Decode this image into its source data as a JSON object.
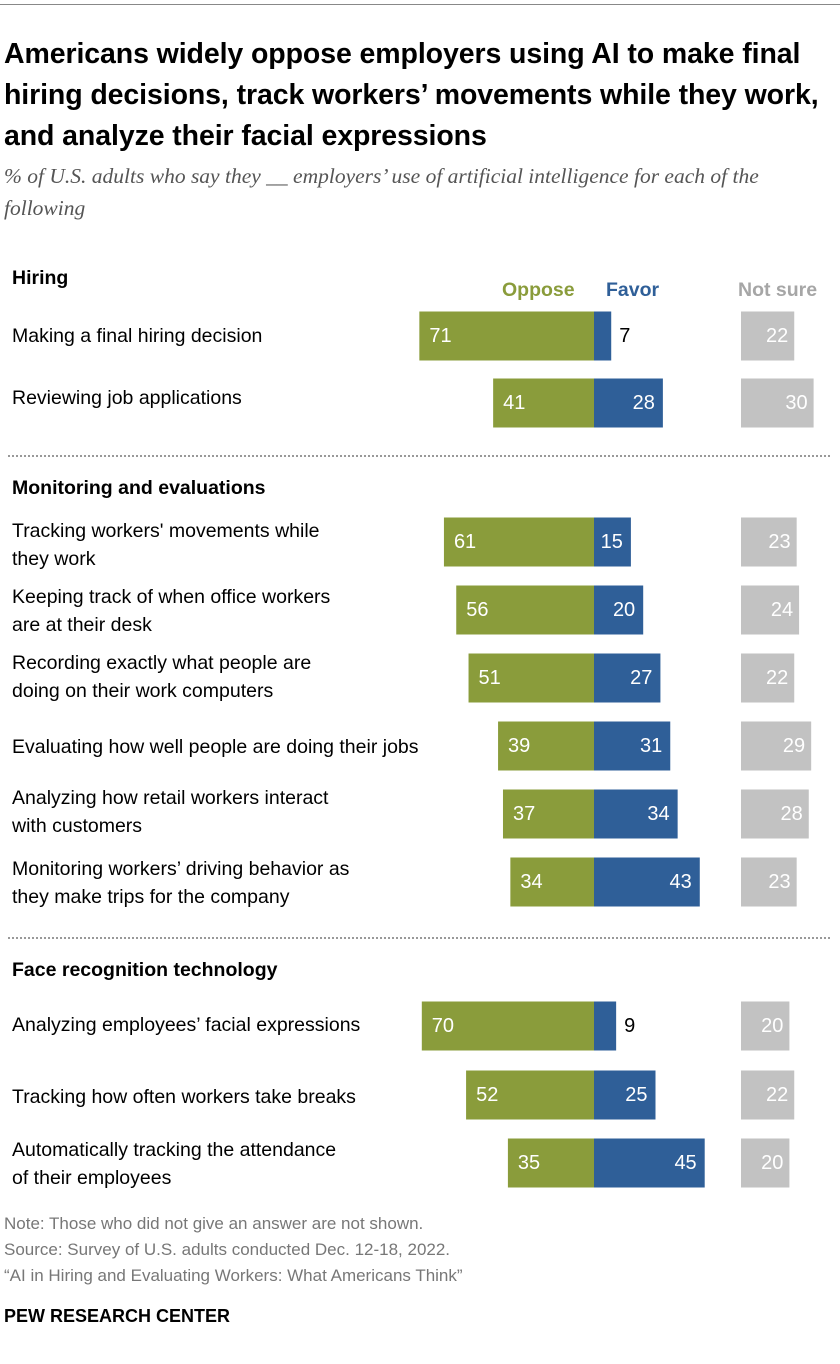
{
  "title": "Americans widely oppose employers using AI to make final hiring decisions, track workers’ movements while they work, and analyze their facial expressions",
  "subtitle": "% of U.S. adults who say they __ employers’ use of artificial intelligence for each of the following",
  "legend": {
    "oppose": "Oppose",
    "favor": "Favor",
    "not_sure": "Not sure"
  },
  "colors": {
    "oppose": "#8a9c3b",
    "favor": "#2f5f98",
    "not_sure": "#c2c2c2",
    "label_text": "#ffffff",
    "favor_small_text": "#000000"
  },
  "sections": [
    {
      "title": "Hiring"
    },
    {
      "title": "Monitoring and evaluations"
    },
    {
      "title": "Face recognition technology"
    }
  ],
  "chart_data": {
    "type": "bar",
    "categories": [
      "Making a final hiring decision",
      "Reviewing job applications",
      "Tracking workers' movements while they work",
      "Keeping track of when office workers are at their desk",
      "Recording exactly what people are doing on their work computers",
      "Evaluating how well people are doing their jobs",
      "Analyzing how retail workers interact with customers",
      "Monitoring workers’ driving behavior as they make trips for the company",
      "Analyzing employees’ facial expressions",
      "Tracking how often workers take breaks",
      "Automatically tracking the attendance of their employees"
    ],
    "series": [
      {
        "name": "Oppose",
        "values": [
          71,
          41,
          61,
          56,
          51,
          39,
          37,
          34,
          70,
          52,
          35
        ]
      },
      {
        "name": "Favor",
        "values": [
          7,
          28,
          15,
          20,
          27,
          31,
          34,
          43,
          9,
          25,
          45
        ]
      },
      {
        "name": "Not sure",
        "values": [
          22,
          30,
          23,
          24,
          22,
          29,
          28,
          23,
          20,
          22,
          20
        ]
      }
    ],
    "groups": [
      "Hiring",
      "Hiring",
      "Monitoring and evaluations",
      "Monitoring and evaluations",
      "Monitoring and evaluations",
      "Monitoring and evaluations",
      "Monitoring and evaluations",
      "Monitoring and evaluations",
      "Face recognition technology",
      "Face recognition technology",
      "Face recognition technology"
    ]
  },
  "rows": [
    {
      "label_lines": [
        "Making a final hiring decision"
      ]
    },
    {
      "label_lines": [
        "Reviewing job applications"
      ]
    },
    {
      "label_lines": [
        "Tracking workers' movements while",
        "they work"
      ]
    },
    {
      "label_lines": [
        "Keeping track of when office workers",
        "are at their desk"
      ]
    },
    {
      "label_lines": [
        "Recording exactly what people are",
        "doing on their work computers"
      ]
    },
    {
      "label_lines": [
        "Evaluating how well people are doing their jobs"
      ]
    },
    {
      "label_lines": [
        "Analyzing how retail workers interact",
        "with customers"
      ]
    },
    {
      "label_lines": [
        "Monitoring workers’ driving behavior as",
        "they make trips for the company"
      ]
    },
    {
      "label_lines": [
        "Analyzing employees’ facial expressions"
      ]
    },
    {
      "label_lines": [
        "Tracking how often workers take breaks"
      ]
    },
    {
      "label_lines": [
        "Automatically tracking the attendance",
        "of their employees"
      ]
    }
  ],
  "notes": {
    "note": "Note: Those who did not give an answer are not shown.",
    "source": "Source: Survey of U.S. adults conducted Dec. 12-18, 2022.",
    "report": "“AI in Hiring and Evaluating Workers: What Americans Think”"
  },
  "brand": "PEW RESEARCH CENTER"
}
